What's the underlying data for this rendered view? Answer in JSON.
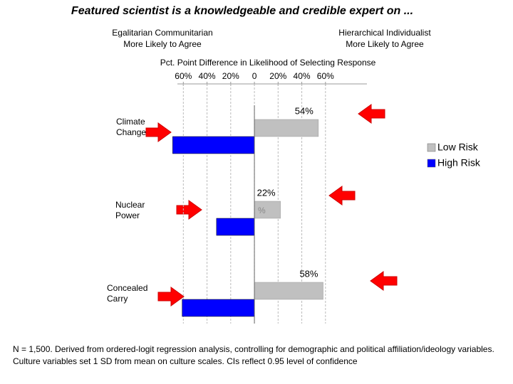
{
  "chart_data": {
    "type": "hbar",
    "title": "Featured scientist is a knowledgeable and credible expert on ...",
    "left_header": [
      "Egalitarian Communitarian",
      "More Likely to Agree"
    ],
    "right_header": [
      "Hierarchical Individualist",
      "More Likely to Agree"
    ],
    "xlabel": "Pct. Point Difference in Likelihood of Selecting Response",
    "categories": [
      "Climate Change",
      "Nuclear Power",
      "Concealed Carry"
    ],
    "series": [
      {
        "name": "Low Risk",
        "color": "#c0c0c0",
        "values": [
          54,
          22,
          58
        ],
        "value_labels": [
          "54%",
          "22%",
          "58%"
        ]
      },
      {
        "name": "High Risk",
        "color": "#0000ff",
        "values": [
          -69,
          -32,
          -61
        ]
      }
    ],
    "xlim": [
      -65,
      95
    ],
    "xticks": [
      {
        "value": -60,
        "label": "60%"
      },
      {
        "value": -40,
        "label": "40%"
      },
      {
        "value": -20,
        "label": "20%"
      },
      0,
      {
        "value": 20,
        "label": "20%"
      },
      {
        "value": 40,
        "label": "40%"
      },
      {
        "value": 60,
        "label": "60%"
      }
    ],
    "grid": true,
    "legend": "right",
    "annotations": [
      "%"
    ],
    "footnote": "N = 1,500. Derived from ordered-logit regression analysis, controlling for demographic and political affiliation/ideology variables. Culture variables set 1 SD from mean on culture scales. CIs reflect 0.95 level of confidence"
  }
}
